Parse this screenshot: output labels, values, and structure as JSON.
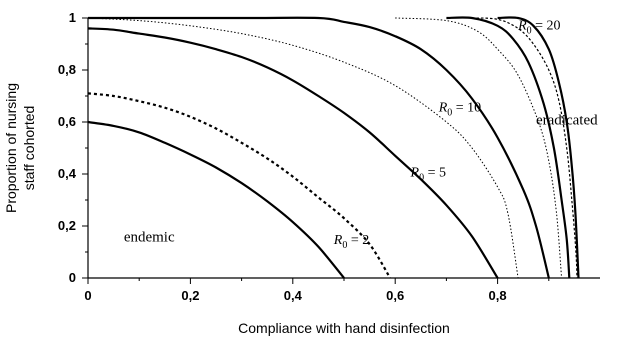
{
  "chart_data": {
    "type": "line",
    "xlabel": "Compliance with hand disinfection",
    "ylabel_lines": [
      "Proportion of nursing",
      "staff cohorted"
    ],
    "xlim": [
      0,
      1
    ],
    "ylim": [
      0,
      1
    ],
    "x_ticks": [
      {
        "value": 0,
        "label": "0"
      },
      {
        "value": 0.2,
        "label": "0,2"
      },
      {
        "value": 0.4,
        "label": "0,4"
      },
      {
        "value": 0.6,
        "label": "0,6"
      },
      {
        "value": 0.8,
        "label": "0,8"
      }
    ],
    "y_ticks": [
      {
        "value": 0,
        "label": "0"
      },
      {
        "value": 0.2,
        "label": "0,2"
      },
      {
        "value": 0.4,
        "label": "0,4"
      },
      {
        "value": 0.6,
        "label": "0,6"
      },
      {
        "value": 0.8,
        "label": "0,8"
      },
      {
        "value": 1,
        "label": "1"
      }
    ],
    "region_labels": {
      "endemic": "endemic",
      "eradicated": "eradicated"
    },
    "curve_label_parts": {
      "symbol": "R",
      "subscript": "0"
    },
    "series": [
      {
        "label_value": "2",
        "label_text": " = 2",
        "style": "solid",
        "label_anchor": {
          "x": 0.48,
          "y": 0.13
        },
        "points": [
          [
            0,
            0.6
          ],
          [
            0.05,
            0.585
          ],
          [
            0.1,
            0.56
          ],
          [
            0.15,
            0.52
          ],
          [
            0.2,
            0.475
          ],
          [
            0.25,
            0.425
          ],
          [
            0.3,
            0.365
          ],
          [
            0.35,
            0.295
          ],
          [
            0.4,
            0.215
          ],
          [
            0.45,
            0.12
          ],
          [
            0.5,
            0
          ]
        ]
      },
      {
        "label_value": "",
        "label_text": "",
        "style": "dashed",
        "points": [
          [
            0,
            0.71
          ],
          [
            0.05,
            0.7
          ],
          [
            0.1,
            0.68
          ],
          [
            0.15,
            0.655
          ],
          [
            0.2,
            0.62
          ],
          [
            0.25,
            0.575
          ],
          [
            0.3,
            0.52
          ],
          [
            0.35,
            0.46
          ],
          [
            0.4,
            0.39
          ],
          [
            0.45,
            0.31
          ],
          [
            0.5,
            0.23
          ],
          [
            0.55,
            0.13
          ],
          [
            0.59,
            0
          ]
        ]
      },
      {
        "label_value": "5",
        "label_text": " = 5",
        "style": "solid",
        "label_anchor": {
          "x": 0.63,
          "y": 0.39
        },
        "points": [
          [
            0,
            0.96
          ],
          [
            0.05,
            0.955
          ],
          [
            0.1,
            0.94
          ],
          [
            0.15,
            0.925
          ],
          [
            0.2,
            0.905
          ],
          [
            0.25,
            0.88
          ],
          [
            0.3,
            0.85
          ],
          [
            0.35,
            0.81
          ],
          [
            0.4,
            0.76
          ],
          [
            0.45,
            0.7
          ],
          [
            0.5,
            0.635
          ],
          [
            0.55,
            0.56
          ],
          [
            0.6,
            0.47
          ],
          [
            0.65,
            0.38
          ],
          [
            0.7,
            0.28
          ],
          [
            0.75,
            0.16
          ],
          [
            0.8,
            0
          ]
        ]
      },
      {
        "label_value": "",
        "label_text": "",
        "style": "dotted",
        "points": [
          [
            0,
            1
          ],
          [
            0.1,
            0.99
          ],
          [
            0.2,
            0.97
          ],
          [
            0.3,
            0.94
          ],
          [
            0.4,
            0.895
          ],
          [
            0.5,
            0.83
          ],
          [
            0.6,
            0.74
          ],
          [
            0.7,
            0.6
          ],
          [
            0.75,
            0.5
          ],
          [
            0.8,
            0.35
          ],
          [
            0.82,
            0.25
          ],
          [
            0.84,
            0
          ]
        ]
      },
      {
        "label_value": "10",
        "label_text": " = 10",
        "style": "solid",
        "label_anchor": {
          "x": 0.685,
          "y": 0.64
        },
        "points": [
          [
            0,
            1
          ],
          [
            0.3,
            1
          ],
          [
            0.45,
            1
          ],
          [
            0.5,
            0.985
          ],
          [
            0.55,
            0.965
          ],
          [
            0.6,
            0.93
          ],
          [
            0.65,
            0.88
          ],
          [
            0.7,
            0.8
          ],
          [
            0.75,
            0.69
          ],
          [
            0.8,
            0.54
          ],
          [
            0.85,
            0.34
          ],
          [
            0.875,
            0.2
          ],
          [
            0.9,
            0
          ]
        ]
      },
      {
        "label_value": "",
        "label_text": "",
        "style": "dotted",
        "points": [
          [
            0.6,
            1
          ],
          [
            0.7,
            0.99
          ],
          [
            0.76,
            0.95
          ],
          [
            0.8,
            0.88
          ],
          [
            0.84,
            0.78
          ],
          [
            0.88,
            0.6
          ],
          [
            0.9,
            0.45
          ],
          [
            0.915,
            0.25
          ],
          [
            0.925,
            0
          ]
        ]
      },
      {
        "label_value": "",
        "label_text": "",
        "style": "solid",
        "points": [
          [
            0.7,
            1
          ],
          [
            0.75,
            1
          ],
          [
            0.8,
            0.97
          ],
          [
            0.83,
            0.92
          ],
          [
            0.86,
            0.83
          ],
          [
            0.89,
            0.67
          ],
          [
            0.91,
            0.5
          ],
          [
            0.925,
            0.3
          ],
          [
            0.935,
            0.15
          ],
          [
            0.94,
            0
          ]
        ]
      },
      {
        "label_value": "20",
        "label_text": " = 20",
        "style": "dashed-fine",
        "label_anchor": {
          "x": 0.84,
          "y": 0.955
        },
        "points": [
          [
            0.75,
            1
          ],
          [
            0.8,
            0.995
          ],
          [
            0.84,
            0.96
          ],
          [
            0.87,
            0.9
          ],
          [
            0.9,
            0.8
          ],
          [
            0.92,
            0.68
          ],
          [
            0.935,
            0.5
          ],
          [
            0.945,
            0.3
          ],
          [
            0.953,
            0.1
          ],
          [
            0.955,
            0
          ]
        ]
      },
      {
        "label_value": "",
        "label_text": "",
        "style": "solid",
        "points": [
          [
            0.8,
            1
          ],
          [
            0.84,
            1
          ],
          [
            0.87,
            0.97
          ],
          [
            0.9,
            0.88
          ],
          [
            0.92,
            0.75
          ],
          [
            0.935,
            0.6
          ],
          [
            0.945,
            0.43
          ],
          [
            0.952,
            0.25
          ],
          [
            0.958,
            0
          ]
        ]
      }
    ]
  }
}
